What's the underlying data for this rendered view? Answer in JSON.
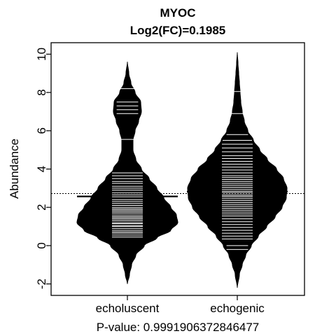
{
  "chart_data": {
    "type": "beanplot",
    "title": "MYOC",
    "subtitle": "Log2(FC)=0.1985",
    "ylabel": "Abundance",
    "xlabel": "P-value: 0.9991906372846477",
    "ylim": [
      -2.6,
      10.6
    ],
    "yticks": [
      -2,
      0,
      2,
      4,
      6,
      8,
      10
    ],
    "overall_mean": 2.72,
    "categories": [
      "echoluscent",
      "echogenic"
    ],
    "groups": [
      {
        "name": "echoluscent",
        "mean": 2.57,
        "range": [
          -2.0,
          9.6
        ],
        "density_profile": [
          [
            -2.0,
            0.0
          ],
          [
            -1.5,
            0.03
          ],
          [
            -1.0,
            0.06
          ],
          [
            -0.5,
            0.12
          ],
          [
            0.0,
            0.24
          ],
          [
            0.4,
            0.42
          ],
          [
            0.8,
            0.62
          ],
          [
            1.2,
            0.72
          ],
          [
            1.6,
            0.7
          ],
          [
            2.0,
            0.62
          ],
          [
            2.5,
            0.52
          ],
          [
            3.0,
            0.42
          ],
          [
            3.5,
            0.31
          ],
          [
            4.0,
            0.2
          ],
          [
            4.5,
            0.12
          ],
          [
            5.0,
            0.08
          ],
          [
            5.5,
            0.08
          ],
          [
            6.0,
            0.11
          ],
          [
            6.5,
            0.16
          ],
          [
            7.0,
            0.2
          ],
          [
            7.5,
            0.19
          ],
          [
            8.0,
            0.11
          ],
          [
            8.5,
            0.05
          ],
          [
            9.0,
            0.02
          ],
          [
            9.6,
            0.0
          ]
        ],
        "observations": [
          0.45,
          0.55,
          0.65,
          0.72,
          0.8,
          0.9,
          1.0,
          1.05,
          1.15,
          1.2,
          1.3,
          1.38,
          1.45,
          1.52,
          1.6,
          1.7,
          1.78,
          1.85,
          1.92,
          2.0,
          2.1,
          2.2,
          2.3,
          2.4,
          2.55,
          2.65,
          2.75,
          2.9,
          3.0,
          3.1,
          3.25,
          3.35,
          3.5,
          3.65,
          3.8,
          5.55,
          6.9,
          7.1,
          7.3,
          7.5,
          8.2
        ]
      },
      {
        "name": "echogenic",
        "mean": 2.82,
        "range": [
          -2.2,
          10.1
        ],
        "density_profile": [
          [
            -2.2,
            0.0
          ],
          [
            -1.5,
            0.03
          ],
          [
            -1.0,
            0.07
          ],
          [
            -0.5,
            0.12
          ],
          [
            0.0,
            0.2
          ],
          [
            0.5,
            0.3
          ],
          [
            1.0,
            0.42
          ],
          [
            1.5,
            0.54
          ],
          [
            2.0,
            0.64
          ],
          [
            2.5,
            0.7
          ],
          [
            3.0,
            0.71
          ],
          [
            3.5,
            0.66
          ],
          [
            4.0,
            0.56
          ],
          [
            4.5,
            0.43
          ],
          [
            5.0,
            0.32
          ],
          [
            5.5,
            0.23
          ],
          [
            6.0,
            0.15
          ],
          [
            6.5,
            0.1
          ],
          [
            7.0,
            0.07
          ],
          [
            7.5,
            0.05
          ],
          [
            8.0,
            0.04
          ],
          [
            8.5,
            0.03
          ],
          [
            9.0,
            0.02
          ],
          [
            9.5,
            0.01
          ],
          [
            10.1,
            0.0
          ]
        ],
        "observations": [
          -0.2,
          0.0,
          0.35,
          0.5,
          0.65,
          0.8,
          0.95,
          1.1,
          1.25,
          1.4,
          1.55,
          1.65,
          1.75,
          1.85,
          1.95,
          2.05,
          2.15,
          2.25,
          2.35,
          2.45,
          2.55,
          2.62,
          2.7,
          2.78,
          2.85,
          2.95,
          3.05,
          3.15,
          3.25,
          3.35,
          3.45,
          3.55,
          3.65,
          3.8,
          3.95,
          4.1,
          4.25,
          4.4,
          4.55,
          4.7,
          4.9,
          5.1,
          5.3,
          5.5,
          5.8,
          6.9,
          8.05
        ]
      }
    ]
  }
}
